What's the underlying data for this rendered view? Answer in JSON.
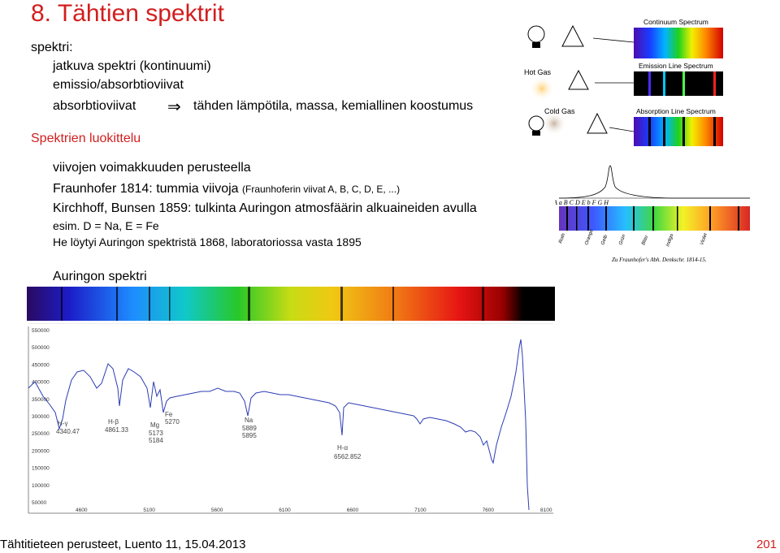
{
  "slide": {
    "title": "8. Tähtien spektrit",
    "spektri_label": "spektri:",
    "lines": [
      "jatkuva spektri (kontinuumi)",
      "emissio/absorbtioviivat",
      "absorbtioviivat"
    ],
    "arrow_text": "tähden lämpötila, massa, kemiallinen koostumus",
    "section_heading": "Spektrien luokittelu",
    "bullet1": "viivojen voimakkuuden perusteella",
    "fraunhofer_main": "Fraunhofer 1814: tummia viivoja",
    "fraunhofer_small": "(Fraunhoferin viivat A, B, C, D, E, ...)",
    "kirchhoff": "Kirchhoff, Bunsen 1859: tulkinta Auringon atmosfäärin alkuaineiden avulla",
    "esim": "esim. D = Na, E = Fe",
    "helium": "He löytyi Auringon spektristä 1868, laboratoriossa vasta 1895",
    "sun_spectrum_label": "Auringon spektri"
  },
  "diagram": {
    "continuum_label": "Continuum Spectrum",
    "emission_label": "Emission Line Spectrum",
    "absorption_label": "Absorption Line Spectrum",
    "hot_gas": "Hot Gas",
    "cold_gas": "Cold Gas"
  },
  "fraunhofer_drawing": {
    "letters": "A a B C   D E b F  G  H",
    "caption": "Zu Fraunhofer's Abh. Denkschr. 1814-15."
  },
  "chart_data": {
    "type": "line",
    "y_ticks": [
      "550000",
      "500000",
      "450000",
      "400000",
      "350000",
      "300000",
      "250000",
      "200000",
      "150000",
      "100000",
      "50000"
    ],
    "x_ticks": [
      "4600",
      "5100",
      "5600",
      "6100",
      "6600",
      "7100",
      "7600",
      "8100"
    ],
    "annotations": [
      {
        "label": "H-γ",
        "value": "4340.47"
      },
      {
        "label": "H-β",
        "value": "4861.33"
      },
      {
        "label": "Mg",
        "value": "5173"
      },
      {
        "label": "Mg2",
        "value": "5184"
      },
      {
        "label": "Fe",
        "value": "5270"
      },
      {
        "label": "Na",
        "value": "5889"
      },
      {
        "label": "Na2",
        "value": "5895"
      },
      {
        "label": "H-α",
        "value": "6562.852"
      }
    ]
  },
  "footer": {
    "text": "Tähtitieteen perusteet, Luento 11, 15.04.2013",
    "page": "201"
  }
}
